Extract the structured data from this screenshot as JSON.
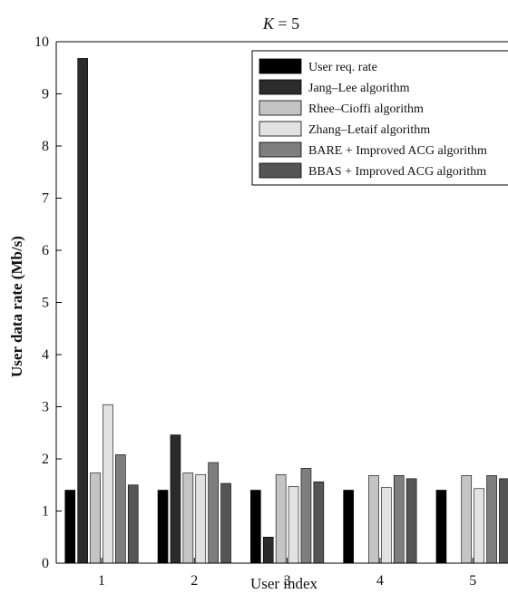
{
  "chart_data": {
    "type": "bar",
    "title_var": "K",
    "title_rest": " = 5",
    "xlabel": "User index",
    "ylabel": "User data rate (Mb/s)",
    "categories": [
      "1",
      "2",
      "3",
      "4",
      "5"
    ],
    "ylim": [
      0,
      10
    ],
    "yticks": [
      "0",
      "1",
      "2",
      "3",
      "4",
      "5",
      "6",
      "7",
      "8",
      "9",
      "10"
    ],
    "grid": false,
    "legend_position": "top-right",
    "series": [
      {
        "name": "User req. rate",
        "color": "#000000",
        "values": [
          1.4,
          1.4,
          1.4,
          1.4,
          1.4
        ]
      },
      {
        "name": "Jang–Lee algorithm",
        "color": "#2b2b2b",
        "values": [
          9.68,
          2.46,
          0.5,
          0,
          0
        ]
      },
      {
        "name": "Rhee–Cioffi algorithm",
        "color": "#c4c4c4",
        "values": [
          1.73,
          1.73,
          1.7,
          1.68,
          1.68
        ]
      },
      {
        "name": "Zhang–Letaif algorithm",
        "color": "#e2e2e2",
        "values": [
          3.04,
          1.7,
          1.47,
          1.45,
          1.43
        ]
      },
      {
        "name": "BARE + Improved ACG algorithm",
        "color": "#7e7e7e",
        "values": [
          2.08,
          1.93,
          1.82,
          1.68,
          1.68
        ]
      },
      {
        "name": "BBAS + Improved ACG algorithm",
        "color": "#555555",
        "values": [
          1.5,
          1.53,
          1.56,
          1.62,
          1.62
        ]
      }
    ]
  }
}
